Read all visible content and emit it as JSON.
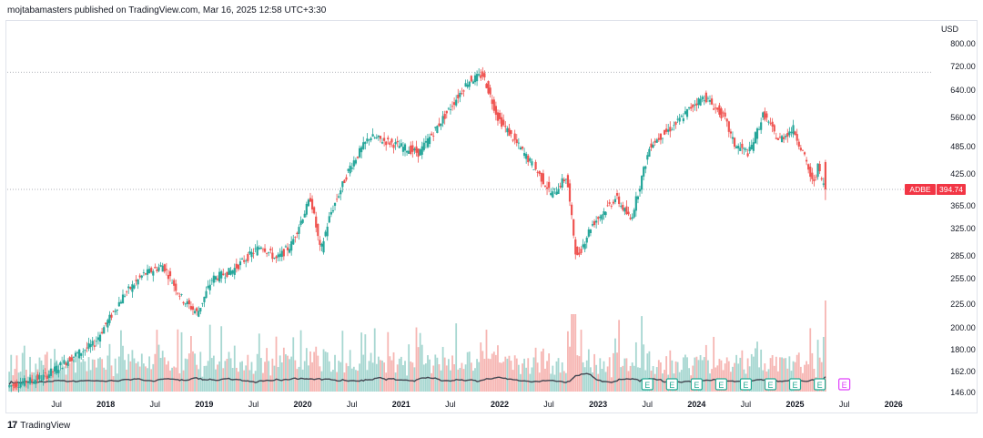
{
  "header": {
    "published_by": "mojtabamasters published on TradingView.com, Mar 16, 2025 12:58 UTC+3:30"
  },
  "footer": {
    "brand": "TradingView",
    "logo_icon": "tradingview-logo-icon"
  },
  "colors": {
    "up": "#26a69a",
    "down": "#ef5350",
    "volume_up": "#a7d7d1",
    "volume_down": "#f6b6b3",
    "ma": "#434651",
    "grid_dotted": "#9598a1",
    "price_label_bg": "#f23645",
    "earnings": "#22ab94",
    "earnings_future": "#e040fb"
  },
  "chart_data": {
    "type": "candlestick",
    "symbol": "ADBE",
    "currency": "USD",
    "last_price_label": "394.74",
    "y_axis_ticks": [
      "800.00",
      "720.00",
      "640.00",
      "560.00",
      "485.00",
      "425.00",
      "365.00",
      "325.00",
      "285.00",
      "255.00",
      "225.00",
      "200.00",
      "180.00",
      "162.00",
      "146.00"
    ],
    "y_tick_values": [
      800,
      720,
      640,
      560,
      485,
      425,
      394.74,
      365,
      325,
      285,
      255,
      225,
      200,
      180,
      162,
      146
    ],
    "ylim": [
      146,
      800
    ],
    "y_scale": "log",
    "x_axis_labels": [
      {
        "label": "Jul",
        "t": 2017.5
      },
      {
        "label": "2018",
        "t": 2018.0
      },
      {
        "label": "Jul",
        "t": 2018.5
      },
      {
        "label": "2019",
        "t": 2019.0
      },
      {
        "label": "Jul",
        "t": 2019.5
      },
      {
        "label": "2020",
        "t": 2020.0
      },
      {
        "label": "Jul",
        "t": 2020.5
      },
      {
        "label": "2021",
        "t": 2021.0
      },
      {
        "label": "Jul",
        "t": 2021.5
      },
      {
        "label": "2022",
        "t": 2022.0
      },
      {
        "label": "Jul",
        "t": 2022.5
      },
      {
        "label": "2023",
        "t": 2023.0
      },
      {
        "label": "Jul",
        "t": 2023.5
      },
      {
        "label": "2024",
        "t": 2024.0
      },
      {
        "label": "Jul",
        "t": 2024.5
      },
      {
        "label": "2025",
        "t": 2025.0
      },
      {
        "label": "Jul",
        "t": 2025.5
      },
      {
        "label": "2026",
        "t": 2026.0
      }
    ],
    "xlim": [
      2017.0,
      2026.4
    ],
    "price_path": [
      [
        2017.0,
        150
      ],
      [
        2017.4,
        158
      ],
      [
        2017.7,
        175
      ],
      [
        2017.9,
        185
      ],
      [
        2018.2,
        235
      ],
      [
        2018.4,
        260
      ],
      [
        2018.6,
        272
      ],
      [
        2018.8,
        230
      ],
      [
        2018.95,
        215
      ],
      [
        2019.1,
        255
      ],
      [
        2019.3,
        265
      ],
      [
        2019.6,
        300
      ],
      [
        2019.75,
        280
      ],
      [
        2019.9,
        300
      ],
      [
        2020.1,
        380
      ],
      [
        2020.2,
        290
      ],
      [
        2020.3,
        350
      ],
      [
        2020.5,
        440
      ],
      [
        2020.7,
        510
      ],
      [
        2020.9,
        495
      ],
      [
        2021.2,
        470
      ],
      [
        2021.5,
        580
      ],
      [
        2021.7,
        670
      ],
      [
        2021.85,
        690
      ],
      [
        2022.0,
        560
      ],
      [
        2022.2,
        490
      ],
      [
        2022.4,
        430
      ],
      [
        2022.55,
        385
      ],
      [
        2022.7,
        420
      ],
      [
        2022.8,
        280
      ],
      [
        2022.95,
        330
      ],
      [
        2023.2,
        380
      ],
      [
        2023.35,
        340
      ],
      [
        2023.55,
        490
      ],
      [
        2023.8,
        540
      ],
      [
        2024.0,
        600
      ],
      [
        2024.1,
        620
      ],
      [
        2024.3,
        560
      ],
      [
        2024.4,
        490
      ],
      [
        2024.55,
        470
      ],
      [
        2024.7,
        570
      ],
      [
        2024.85,
        500
      ],
      [
        2025.0,
        530
      ],
      [
        2025.1,
        470
      ],
      [
        2025.2,
        405
      ],
      [
        2025.25,
        440
      ],
      [
        2025.32,
        394.74
      ]
    ],
    "volume_bars": "relative heights derived procedurally from price changes",
    "moving_average": "volume moving average line",
    "earnings_markers_t": [
      2023.5,
      2023.75,
      2024.0,
      2024.25,
      2024.5,
      2024.75,
      2025.0,
      2025.25
    ],
    "future_earnings_t": 2025.5,
    "horizontal_levels": [
      700,
      394.74
    ]
  }
}
